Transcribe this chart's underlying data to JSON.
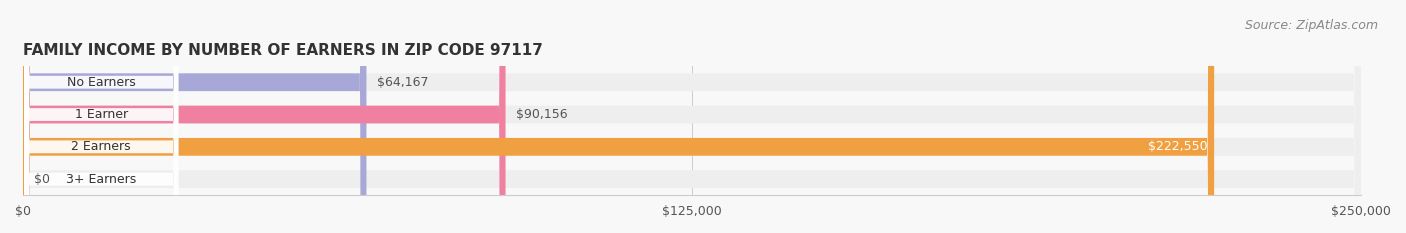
{
  "title": "FAMILY INCOME BY NUMBER OF EARNERS IN ZIP CODE 97117",
  "source": "Source: ZipAtlas.com",
  "categories": [
    "No Earners",
    "1 Earner",
    "2 Earners",
    "3+ Earners"
  ],
  "values": [
    64167,
    90156,
    222550,
    0
  ],
  "bar_colors": [
    "#a8a8d8",
    "#f080a0",
    "#f0a040",
    "#f0a0a0"
  ],
  "bar_bg_color": "#eeeeee",
  "label_values": [
    "$64,167",
    "$90,156",
    "$222,550",
    "$0"
  ],
  "label_colors": [
    "#555555",
    "#555555",
    "#ffffff",
    "#555555"
  ],
  "xlim": [
    0,
    250000
  ],
  "xticks": [
    0,
    125000,
    250000
  ],
  "xtick_labels": [
    "$0",
    "$125,000",
    "$250,000"
  ],
  "background_color": "#f8f8f8",
  "title_fontsize": 11,
  "source_fontsize": 9,
  "bar_height": 0.55,
  "bar_gap": 0.9
}
